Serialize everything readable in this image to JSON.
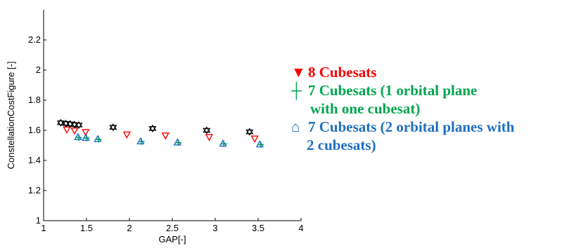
{
  "chart_data": {
    "type": "scatter",
    "xlabel": "GAP[-]",
    "ylabel": "ConstellationCostFigure [-]",
    "xlim": [
      1,
      4
    ],
    "ylim": [
      1,
      2.4
    ],
    "xticks": [
      "1",
      "1.5",
      "2",
      "2.5",
      "3",
      "3.5",
      "4"
    ],
    "yticks": [
      "1",
      "1.2",
      "1.4",
      "1.6",
      "1.8",
      "2",
      "2.2"
    ],
    "grid": false,
    "legend_placement": "right, outside axes",
    "series": [
      {
        "name": "8 Cubesats",
        "marker": "triangle-down-open",
        "color": "#ff0000",
        "x": [
          1.27,
          1.36,
          1.49,
          1.97,
          2.42,
          2.93,
          3.46
        ],
        "y": [
          1.605,
          1.598,
          1.588,
          1.572,
          1.565,
          1.555,
          1.545
        ]
      },
      {
        "name": "7 Cubesats (1 orbital plane with one cubesat)",
        "marker": "plus",
        "color": "#00a550",
        "x": [
          1.41,
          1.5,
          1.64,
          2.14,
          2.57,
          3.1,
          3.53
        ],
        "y": [
          1.552,
          1.548,
          1.54,
          1.525,
          1.518,
          1.51,
          1.505
        ]
      },
      {
        "name": "7 Cubesats (2 orbital planes with 2 cubesats)",
        "marker": "triangle-up-open",
        "color": "#1f6fc0",
        "x": [
          1.4,
          1.49,
          1.63,
          2.13,
          2.56,
          3.09,
          3.52
        ],
        "y": [
          1.555,
          1.55,
          1.542,
          1.527,
          1.52,
          1.512,
          1.507
        ]
      },
      {
        "name": "",
        "marker": "hexagram-open",
        "color": "#000000",
        "x": [
          1.2,
          1.26,
          1.31,
          1.36,
          1.41,
          1.81,
          2.27,
          2.9,
          3.4
        ],
        "y": [
          1.65,
          1.645,
          1.642,
          1.638,
          1.635,
          1.62,
          1.612,
          1.6,
          1.59
        ]
      }
    ]
  },
  "legend": {
    "entries": [
      {
        "glyph": "▼",
        "color": "#ff0000",
        "lines": [
          "8 Cubesats"
        ]
      },
      {
        "glyph": "┼",
        "color": "#00a550",
        "lines": [
          "7 Cubesats (1 orbital plane",
          "with one cubesat)"
        ]
      },
      {
        "glyph": "⌂",
        "color": "#1f6fc0",
        "lines": [
          "7 Cubesats (2 orbital planes with",
          "2 cubesats)"
        ]
      }
    ]
  }
}
